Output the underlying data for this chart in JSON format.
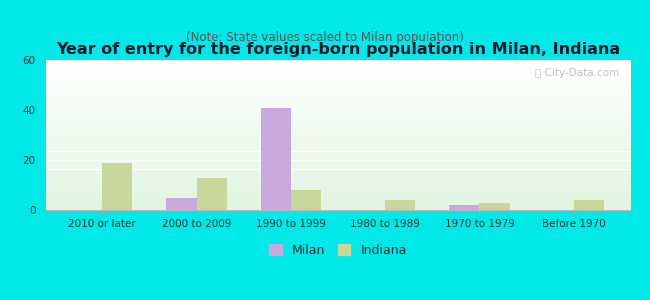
{
  "title": "Year of entry for the foreign-born population in Milan, Indiana",
  "subtitle": "(Note: State values scaled to Milan population)",
  "categories": [
    "2010 or later",
    "2000 to 2009",
    "1990 to 1999",
    "1980 to 1989",
    "1970 to 1979",
    "Before 1970"
  ],
  "milan_values": [
    0,
    5,
    41,
    0,
    2,
    0
  ],
  "indiana_values": [
    19,
    13,
    8,
    4,
    3,
    4
  ],
  "milan_color": "#c9a8e0",
  "indiana_color": "#c8d89a",
  "background_outer": "#00e8e8",
  "ylim": [
    0,
    60
  ],
  "yticks": [
    0,
    20,
    40,
    60
  ],
  "bar_width": 0.32,
  "title_fontsize": 11.5,
  "subtitle_fontsize": 8.5,
  "tick_fontsize": 7.5,
  "legend_fontsize": 9
}
